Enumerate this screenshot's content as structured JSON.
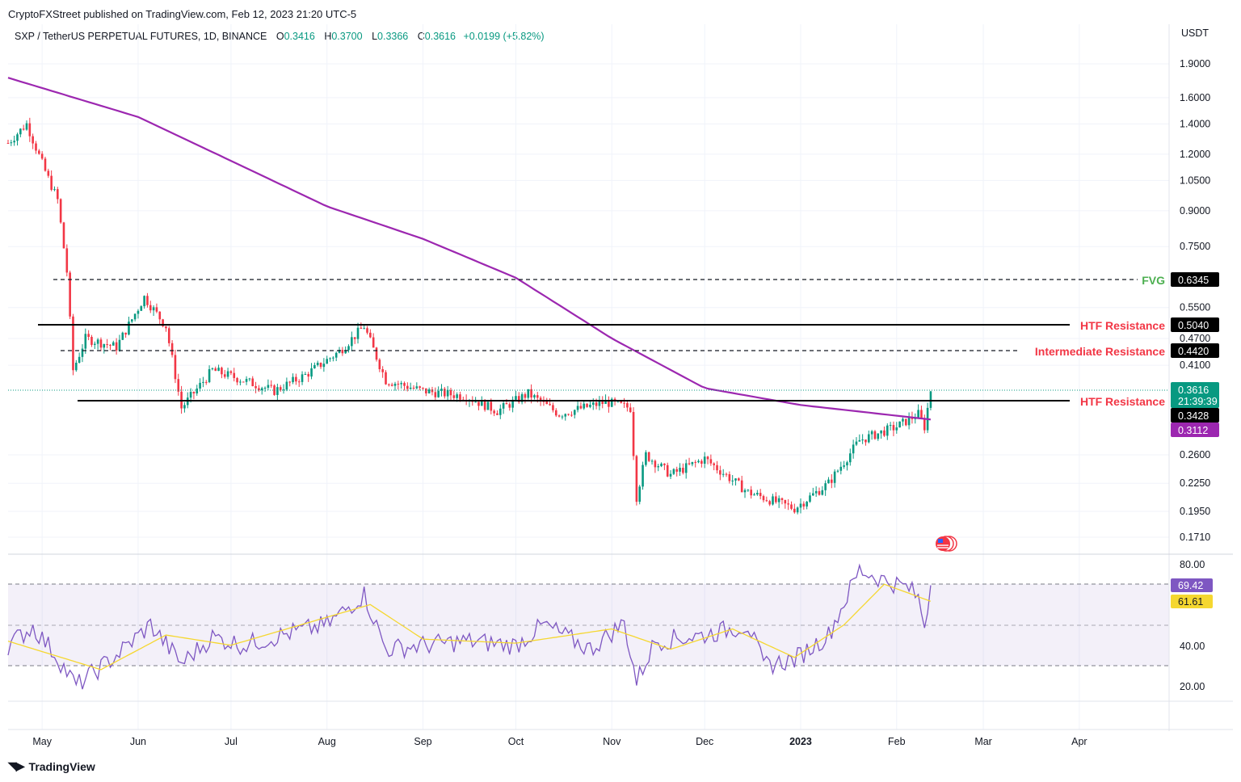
{
  "header": {
    "published_line": "CryptoFXStreet published on TradingView.com, Feb 12, 2023 21:20 UTC-5",
    "symbol": "SXP / TetherUS PERPETUAL FUTURES, 1D, BINANCE",
    "o_label": "O",
    "o_value": "0.3416",
    "h_label": "H",
    "h_value": "0.3700",
    "l_label": "L",
    "l_value": "0.3366",
    "c_label": "C",
    "c_value": "0.3616",
    "change": "+0.0199 (+5.82%)"
  },
  "price_axis": {
    "currency": "USDT",
    "ticks": [
      "1.9000",
      "1.6000",
      "1.4000",
      "1.2000",
      "1.0500",
      "0.9000",
      "0.7500",
      "0.5500",
      "0.4700",
      "0.4100",
      "0.2600",
      "0.2250",
      "0.1950",
      "0.1710"
    ]
  },
  "rsi_axis": {
    "ticks": [
      "80.00",
      "40.00",
      "20.00"
    ]
  },
  "time_axis": {
    "labels": [
      "May",
      "Jun",
      "Jul",
      "Aug",
      "Sep",
      "Oct",
      "Nov",
      "Dec",
      "2023",
      "Feb",
      "Mar",
      "Apr"
    ]
  },
  "annotations": {
    "fvg": {
      "label": "FVG",
      "value": "0.6345"
    },
    "htf_upper": {
      "label": "HTF Resistance",
      "value": "0.5040"
    },
    "intermediate": {
      "label": "Intermediate Resistance",
      "value": "0.4420"
    },
    "htf_lower": {
      "label": "HTF Resistance",
      "value": "0.3428"
    }
  },
  "tags": {
    "last_price": "0.3616",
    "countdown": "21:39:39",
    "ma_value": "0.3112",
    "rsi_value": "69.42",
    "rsi_ma_value": "61.61"
  },
  "colors": {
    "up": "#089981",
    "down": "#f23645",
    "ma": "#9c27b0",
    "rsi": "#7e57c2",
    "rsi_ma": "#f5d730",
    "fvg": "#4caf50",
    "resistance": "#f23645"
  },
  "footer": {
    "brand": "TradingView"
  },
  "chart_data": [
    {
      "type": "candlestick",
      "title": "SXP / TetherUS PERPETUAL FUTURES, 1D, BINANCE",
      "ylabel": "USDT",
      "y_scale": "log",
      "ylim": [
        0.16,
        2.0
      ],
      "x_range": [
        "2022-04-20",
        "2023-04-30"
      ],
      "close_series_approx": [
        {
          "x": "2022-04-20",
          "y": 1.27
        },
        {
          "x": "2022-04-26",
          "y": 1.4
        },
        {
          "x": "2022-05-02",
          "y": 1.1
        },
        {
          "x": "2022-05-06",
          "y": 0.95
        },
        {
          "x": "2022-05-09",
          "y": 0.66
        },
        {
          "x": "2022-05-11",
          "y": 0.4
        },
        {
          "x": "2022-05-15",
          "y": 0.47
        },
        {
          "x": "2022-05-25",
          "y": 0.45
        },
        {
          "x": "2022-06-03",
          "y": 0.58
        },
        {
          "x": "2022-06-10",
          "y": 0.5
        },
        {
          "x": "2022-06-15",
          "y": 0.33
        },
        {
          "x": "2022-06-25",
          "y": 0.4
        },
        {
          "x": "2022-07-05",
          "y": 0.38
        },
        {
          "x": "2022-07-15",
          "y": 0.36
        },
        {
          "x": "2022-07-25",
          "y": 0.39
        },
        {
          "x": "2022-08-05",
          "y": 0.44
        },
        {
          "x": "2022-08-13",
          "y": 0.5
        },
        {
          "x": "2022-08-20",
          "y": 0.38
        },
        {
          "x": "2022-09-01",
          "y": 0.36
        },
        {
          "x": "2022-09-15",
          "y": 0.35
        },
        {
          "x": "2022-09-25",
          "y": 0.325
        },
        {
          "x": "2022-10-05",
          "y": 0.355
        },
        {
          "x": "2022-10-15",
          "y": 0.32
        },
        {
          "x": "2022-10-30",
          "y": 0.34
        },
        {
          "x": "2022-11-07",
          "y": 0.33
        },
        {
          "x": "2022-11-09",
          "y": 0.21
        },
        {
          "x": "2022-11-12",
          "y": 0.26
        },
        {
          "x": "2022-11-20",
          "y": 0.235
        },
        {
          "x": "2022-12-01",
          "y": 0.255
        },
        {
          "x": "2022-12-15",
          "y": 0.215
        },
        {
          "x": "2022-12-30",
          "y": 0.198
        },
        {
          "x": "2023-01-10",
          "y": 0.225
        },
        {
          "x": "2023-01-20",
          "y": 0.28
        },
        {
          "x": "2023-02-01",
          "y": 0.3
        },
        {
          "x": "2023-02-08",
          "y": 0.32
        },
        {
          "x": "2023-02-10",
          "y": 0.3
        },
        {
          "x": "2023-02-12",
          "y": 0.3616
        }
      ],
      "moving_average": [
        {
          "x": "2022-04-20",
          "y": 1.77
        },
        {
          "x": "2022-06-01",
          "y": 1.45
        },
        {
          "x": "2022-07-01",
          "y": 1.16
        },
        {
          "x": "2022-08-01",
          "y": 0.92
        },
        {
          "x": "2022-09-01",
          "y": 0.78
        },
        {
          "x": "2022-10-01",
          "y": 0.64
        },
        {
          "x": "2022-11-01",
          "y": 0.47
        },
        {
          "x": "2022-12-01",
          "y": 0.365
        },
        {
          "x": "2023-01-01",
          "y": 0.335
        },
        {
          "x": "2023-02-12",
          "y": 0.3112
        }
      ],
      "horizontal_levels": [
        {
          "label": "FVG",
          "value": 0.6345,
          "style": "dashed"
        },
        {
          "label": "HTF Resistance",
          "value": 0.504,
          "style": "solid"
        },
        {
          "label": "Intermediate Resistance",
          "value": 0.442,
          "style": "dashed"
        },
        {
          "label": "HTF Resistance",
          "value": 0.3428,
          "style": "solid"
        }
      ]
    },
    {
      "type": "line",
      "title": "RSI",
      "ylim": [
        15,
        85
      ],
      "bands": [
        30,
        50,
        70
      ],
      "series": [
        {
          "name": "RSI",
          "values": [
            {
              "x": "2022-04-20",
              "y": 40
            },
            {
              "x": "2022-04-28",
              "y": 49
            },
            {
              "x": "2022-05-05",
              "y": 36
            },
            {
              "x": "2022-05-12",
              "y": 20
            },
            {
              "x": "2022-05-25",
              "y": 35
            },
            {
              "x": "2022-06-05",
              "y": 50
            },
            {
              "x": "2022-06-15",
              "y": 31
            },
            {
              "x": "2022-06-25",
              "y": 44
            },
            {
              "x": "2022-07-05",
              "y": 40
            },
            {
              "x": "2022-07-20",
              "y": 46
            },
            {
              "x": "2022-08-01",
              "y": 50
            },
            {
              "x": "2022-08-13",
              "y": 65
            },
            {
              "x": "2022-08-20",
              "y": 38
            },
            {
              "x": "2022-09-01",
              "y": 40
            },
            {
              "x": "2022-09-15",
              "y": 42
            },
            {
              "x": "2022-10-01",
              "y": 40
            },
            {
              "x": "2022-10-10",
              "y": 50
            },
            {
              "x": "2022-10-25",
              "y": 38
            },
            {
              "x": "2022-11-05",
              "y": 51
            },
            {
              "x": "2022-11-09",
              "y": 22
            },
            {
              "x": "2022-11-15",
              "y": 42
            },
            {
              "x": "2022-12-01",
              "y": 45
            },
            {
              "x": "2022-12-15",
              "y": 50
            },
            {
              "x": "2022-12-20",
              "y": 30
            },
            {
              "x": "2022-12-30",
              "y": 33
            },
            {
              "x": "2023-01-10",
              "y": 45
            },
            {
              "x": "2023-01-20",
              "y": 77
            },
            {
              "x": "2023-01-28",
              "y": 72
            },
            {
              "x": "2023-02-05",
              "y": 68
            },
            {
              "x": "2023-02-08",
              "y": 63
            },
            {
              "x": "2023-02-10",
              "y": 50
            },
            {
              "x": "2023-02-12",
              "y": 69.42
            }
          ]
        },
        {
          "name": "RSI MA",
          "values": [
            {
              "x": "2022-04-20",
              "y": 42
            },
            {
              "x": "2022-05-20",
              "y": 28
            },
            {
              "x": "2022-06-10",
              "y": 45
            },
            {
              "x": "2022-07-01",
              "y": 40
            },
            {
              "x": "2022-08-15",
              "y": 60
            },
            {
              "x": "2022-09-01",
              "y": 43
            },
            {
              "x": "2022-10-01",
              "y": 41
            },
            {
              "x": "2022-11-01",
              "y": 48
            },
            {
              "x": "2022-11-20",
              "y": 38
            },
            {
              "x": "2022-12-10",
              "y": 48
            },
            {
              "x": "2022-12-30",
              "y": 34
            },
            {
              "x": "2023-01-15",
              "y": 50
            },
            {
              "x": "2023-01-28",
              "y": 70
            },
            {
              "x": "2023-02-12",
              "y": 61.61
            }
          ]
        }
      ]
    }
  ]
}
